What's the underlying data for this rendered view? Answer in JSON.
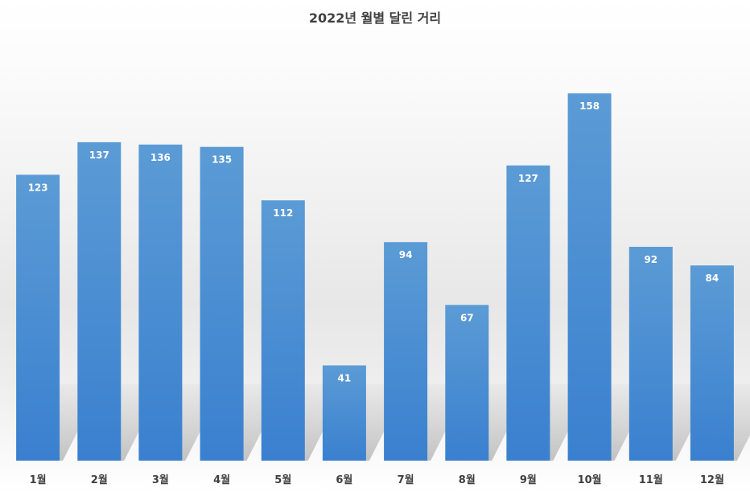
{
  "chart_data": {
    "type": "bar",
    "title": "2022년 월별 달린 거리",
    "xlabel": "",
    "ylabel": "",
    "categories": [
      "1월",
      "2월",
      "3월",
      "4월",
      "5월",
      "6월",
      "7월",
      "8월",
      "9월",
      "10월",
      "11월",
      "12월"
    ],
    "values": [
      123,
      137,
      136,
      135,
      112,
      41,
      94,
      67,
      127,
      158,
      92,
      84
    ],
    "ylim": [
      0,
      185
    ],
    "grid": false,
    "legend": "none",
    "data_labels": "inside-end",
    "bar_color": "#4a8fd6",
    "bar_color_top": "#5b9bd5",
    "bar_color_bottom": "#3a80cf",
    "label_color": "#ffffff",
    "text_color": "#404040"
  }
}
